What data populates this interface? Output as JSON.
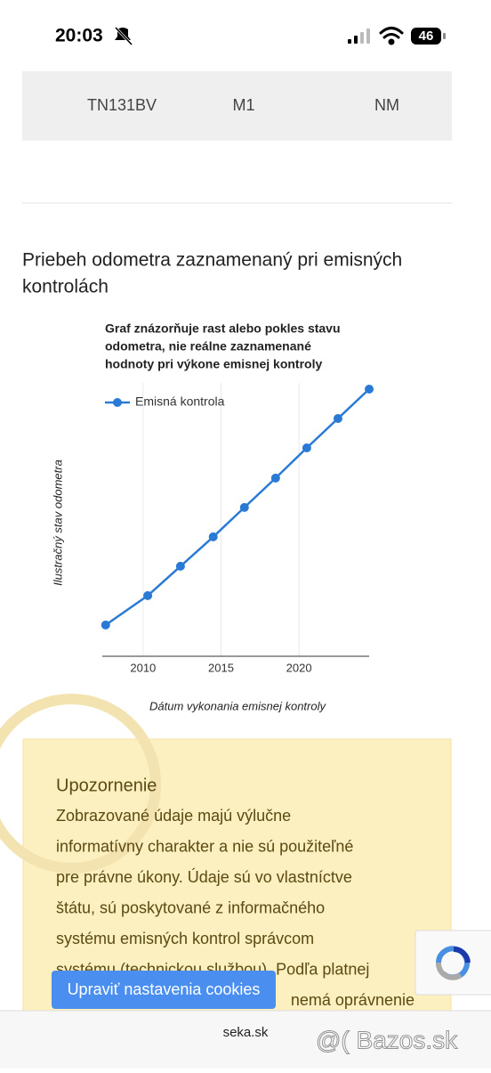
{
  "status_bar": {
    "time": "20:03",
    "battery": "46"
  },
  "table": {
    "rows": [
      [
        "TN131BV",
        "M1",
        "NM"
      ]
    ]
  },
  "section_heading": [
    "Priebeh odometra zaznamenaný pri emisných",
    "kontrolách"
  ],
  "chart_data": {
    "type": "line",
    "title": [
      "Graf znázorňuje rast alebo pokles stavu",
      "odometra, nie reálne zaznamenané",
      "hodnoty pri výkone emisnej kontroly"
    ],
    "x_label": "Dátum vykonania emisnej kontroly",
    "y_label": "Ilustračný stav odometra",
    "x": [
      2007.6,
      2010.3,
      2012.4,
      2014.5,
      2016.5,
      2018.5,
      2020.5,
      2022.5,
      2024.5
    ],
    "series": [
      {
        "name": "Emisná kontrola",
        "color": "#2a7ad5",
        "values": [
          11.7,
          22.7,
          33.7,
          44.7,
          55.7,
          66.7,
          78,
          89,
          100
        ]
      }
    ],
    "xlim": [
      2007.5,
      2024.5
    ],
    "xticks": [
      2010,
      2015,
      2020
    ],
    "ylim": [
      0,
      100
    ],
    "grid": true,
    "legend": "top-left"
  },
  "notice": {
    "title": "Upozornenie",
    "lines": [
      "Zobrazované údaje majú výlučne",
      "informatívny charakter a nie sú použiteľné",
      "pre právne úkony. Údaje sú vo vlastníctve",
      "štátu, sú poskytované z informačného",
      "systému emisných kontrol správcom",
      "systému (technickou službou). Podľa platnej",
      "nemá oprávnenie"
    ]
  },
  "cookie_button": "Upraviť nastavenia cookies",
  "footer": {
    "domain": "seka.sk",
    "watermark": "@( Bazos.sk"
  }
}
